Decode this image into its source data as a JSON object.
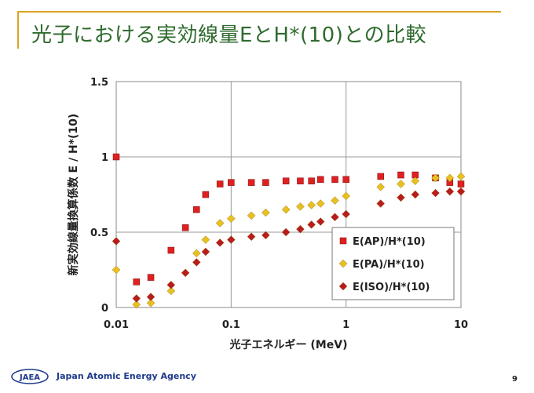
{
  "slide": {
    "title": "光子における実効線量EとH*(10)との比較",
    "page_number": "9"
  },
  "footer": {
    "logo_text": "JAEA",
    "org_name": "Japan Atomic Energy Agency"
  },
  "colors": {
    "title": "#2e6b2e",
    "accent_rule": "#d9a521",
    "ap": "#e02020",
    "pa": "#e8c020",
    "iso": "#b81c1c",
    "logo": "#1e3a8a"
  },
  "chart_data": {
    "type": "scatter",
    "xscale": "log",
    "xlim": [
      0.01,
      10
    ],
    "ylim": [
      0,
      1.5
    ],
    "xticks": [
      "0.01",
      "0.1",
      "1",
      "10"
    ],
    "yticks": [
      "0",
      "0.5",
      "1",
      "1.5"
    ],
    "xlabel": "光子エネルギー (MeV)",
    "ylabel": "新実効線量換算係数 E / H*(10)",
    "grid": true,
    "legend_position": "bottom-right",
    "series": [
      {
        "name": "E(AP)/H*(10)",
        "marker": "square",
        "x": [
          0.01,
          0.015,
          0.02,
          0.03,
          0.04,
          0.05,
          0.06,
          0.08,
          0.1,
          0.15,
          0.2,
          0.3,
          0.4,
          0.5,
          0.6,
          0.8,
          1,
          2,
          3,
          4,
          6,
          8,
          10
        ],
        "y": [
          1.0,
          0.17,
          0.2,
          0.38,
          0.53,
          0.65,
          0.75,
          0.82,
          0.83,
          0.83,
          0.83,
          0.84,
          0.84,
          0.84,
          0.85,
          0.85,
          0.85,
          0.87,
          0.88,
          0.88,
          0.86,
          0.83,
          0.82
        ]
      },
      {
        "name": "E(PA)/H*(10)",
        "marker": "diamond",
        "x": [
          0.01,
          0.015,
          0.02,
          0.03,
          0.05,
          0.06,
          0.08,
          0.1,
          0.15,
          0.2,
          0.3,
          0.4,
          0.5,
          0.6,
          0.8,
          1,
          2,
          3,
          4,
          6,
          8,
          10
        ],
        "y": [
          0.25,
          0.02,
          0.03,
          0.11,
          0.36,
          0.45,
          0.56,
          0.59,
          0.61,
          0.63,
          0.65,
          0.67,
          0.68,
          0.69,
          0.71,
          0.74,
          0.8,
          0.82,
          0.84,
          0.86,
          0.86,
          0.87
        ]
      },
      {
        "name": "E(ISO)/H*(10)",
        "marker": "diamond",
        "x": [
          0.01,
          0.015,
          0.02,
          0.03,
          0.04,
          0.05,
          0.06,
          0.08,
          0.1,
          0.15,
          0.2,
          0.3,
          0.4,
          0.5,
          0.6,
          0.8,
          1,
          2,
          3,
          4,
          6,
          8,
          10
        ],
        "y": [
          0.44,
          0.06,
          0.07,
          0.15,
          0.23,
          0.3,
          0.37,
          0.43,
          0.45,
          0.47,
          0.48,
          0.5,
          0.52,
          0.55,
          0.57,
          0.6,
          0.62,
          0.69,
          0.73,
          0.75,
          0.76,
          0.77,
          0.77
        ]
      }
    ]
  }
}
